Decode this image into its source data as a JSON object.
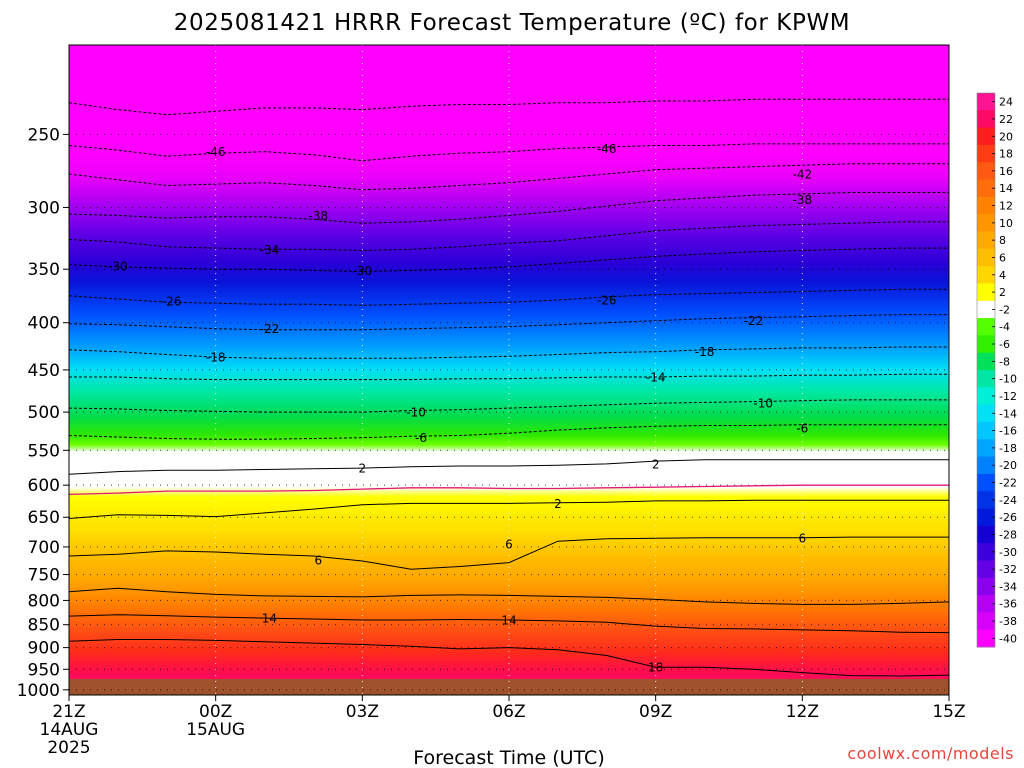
{
  "chart_data": {
    "type": "heatmap",
    "title": "2025081421 HRRR Forecast Temperature (ºC) for KPWM",
    "xlabel": "Forecast Time (UTC)",
    "ylabel": "",
    "x_ticks": [
      {
        "hour": 0,
        "lines": [
          "21Z",
          "14AUG",
          "2025"
        ]
      },
      {
        "hour": 3,
        "lines": [
          "00Z",
          "15AUG"
        ]
      },
      {
        "hour": 6,
        "lines": [
          "03Z"
        ]
      },
      {
        "hour": 9,
        "lines": [
          "06Z"
        ]
      },
      {
        "hour": 12,
        "lines": [
          "09Z"
        ]
      },
      {
        "hour": 15,
        "lines": [
          "12Z"
        ]
      },
      {
        "hour": 18,
        "lines": [
          "15Z"
        ]
      }
    ],
    "xlim": [
      0,
      18
    ],
    "y_ticks": [
      250,
      300,
      350,
      400,
      450,
      500,
      550,
      600,
      650,
      700,
      750,
      800,
      850,
      900,
      950,
      1000
    ],
    "y_unit": "hPa",
    "y_scale": "log (pressure)",
    "ylim": [
      1013,
      200
    ],
    "colorbar": {
      "labels": [
        "24",
        "22",
        "20",
        "18",
        "16",
        "14",
        "12",
        "10",
        "8",
        "6",
        "4",
        "2",
        "-2",
        "-4",
        "-6",
        "-8",
        "-10",
        "-12",
        "-14",
        "-16",
        "-18",
        "-20",
        "-22",
        "-24",
        "-26",
        "-28",
        "-30",
        "-32",
        "-34",
        "-36",
        "-38",
        "-40"
      ],
      "colors": [
        "#ff1493",
        "#ff0a64",
        "#ff1e1e",
        "#ff3c14",
        "#ff5a14",
        "#ff6e0a",
        "#ff8200",
        "#ff9600",
        "#ffaa00",
        "#ffbe00",
        "#ffd700",
        "#ffff00",
        "#ffffff",
        "#54ff00",
        "#30f000",
        "#00e15a",
        "#00e6a5",
        "#00f0d7",
        "#00e1f5",
        "#00c8ff",
        "#00a5ff",
        "#0082ff",
        "#0050ff",
        "#0032e6",
        "#0019dc",
        "#1400d2",
        "#3c00dc",
        "#6400e6",
        "#8c00f0",
        "#b400f5",
        "#d700fa",
        "#ff00ff"
      ]
    },
    "contours": [
      {
        "value": -46,
        "p": [
          231,
          235,
          238,
          236,
          234,
          234,
          235,
          233,
          232,
          232,
          231,
          231,
          230,
          230,
          229,
          229,
          229,
          229,
          229
        ]
      },
      {
        "value": -46,
        "p": [
          257,
          260,
          264,
          262,
          261,
          263,
          267,
          264,
          262,
          261,
          259,
          258,
          257,
          257,
          256,
          256,
          256,
          256,
          256
        ]
      },
      {
        "value": -42,
        "p": [
          276,
          280,
          284,
          283,
          282,
          284,
          287,
          286,
          284,
          282,
          279,
          276,
          273,
          272,
          271,
          270,
          269,
          269,
          269
        ]
      },
      {
        "value": -38,
        "p": [
          305,
          306,
          308,
          307,
          307,
          309,
          312,
          311,
          309,
          306,
          303,
          299,
          295,
          293,
          291,
          290,
          289,
          289,
          289
        ]
      },
      {
        "value": -34,
        "p": [
          325,
          327,
          331,
          332,
          333,
          333,
          334,
          333,
          331,
          328,
          326,
          322,
          318,
          316,
          314,
          313,
          312,
          311,
          311
        ]
      },
      {
        "value": -30,
        "p": [
          346,
          348,
          349,
          350,
          350,
          351,
          352,
          351,
          350,
          348,
          345,
          342,
          339,
          337,
          335,
          334,
          333,
          332,
          332
        ]
      },
      {
        "value": -26,
        "p": [
          374,
          377,
          380,
          381,
          382,
          382,
          383,
          382,
          381,
          380,
          378,
          375,
          373,
          372,
          371,
          370,
          369,
          368,
          368
        ]
      },
      {
        "value": -22,
        "p": [
          401,
          402,
          404,
          406,
          407,
          407,
          407,
          406,
          405,
          404,
          402,
          400,
          398,
          396,
          395,
          394,
          393,
          392,
          392
        ]
      },
      {
        "value": -18,
        "p": [
          428,
          430,
          433,
          436,
          437,
          437,
          437,
          437,
          436,
          435,
          433,
          431,
          430,
          428,
          427,
          426,
          426,
          425,
          425
        ]
      },
      {
        "value": -14,
        "p": [
          458,
          458,
          460,
          461,
          461,
          461,
          461,
          461,
          460,
          460,
          459,
          458,
          458,
          457,
          457,
          456,
          456,
          455,
          455
        ]
      },
      {
        "value": -10,
        "p": [
          495,
          496,
          498,
          499,
          500,
          500,
          500,
          498,
          497,
          495,
          493,
          491,
          489,
          488,
          487,
          486,
          485,
          485,
          485
        ]
      },
      {
        "value": -6,
        "p": [
          530,
          532,
          534,
          535,
          535,
          534,
          533,
          531,
          530,
          527,
          523,
          520,
          518,
          517,
          517,
          516,
          516,
          516,
          516
        ]
      },
      {
        "value": 2,
        "p": [
          584,
          580,
          578,
          578,
          577,
          576,
          575,
          573,
          572,
          572,
          571,
          569,
          565,
          563,
          563,
          563,
          563,
          563,
          563
        ]
      },
      {
        "value": 2,
        "p": [
          614,
          612,
          609,
          609,
          609,
          608,
          606,
          604,
          604,
          605,
          605,
          604,
          603,
          602,
          601,
          600,
          600,
          600,
          600
        ]
      },
      {
        "value": 2,
        "p": [
          652,
          646,
          647,
          649,
          643,
          637,
          630,
          628,
          628,
          628,
          627,
          626,
          624,
          624,
          623,
          623,
          623,
          623,
          623
        ]
      },
      {
        "value": 6,
        "p": [
          716,
          713,
          707,
          709,
          713,
          716,
          725,
          740,
          735,
          728,
          690,
          686,
          685,
          684,
          684,
          684,
          683,
          683,
          683
        ]
      },
      {
        "value": 14,
        "p": [
          783,
          776,
          783,
          788,
          791,
          792,
          793,
          790,
          789,
          790,
          792,
          794,
          798,
          803,
          806,
          808,
          808,
          806,
          803
        ]
      },
      {
        "value": 14,
        "p": [
          832,
          829,
          831,
          834,
          836,
          838,
          840,
          840,
          839,
          840,
          842,
          845,
          853,
          858,
          859,
          861,
          863,
          866,
          867
        ]
      },
      {
        "value": 18,
        "p": [
          886,
          882,
          882,
          884,
          887,
          890,
          893,
          897,
          903,
          900,
          905,
          918,
          945,
          945,
          950,
          958,
          965,
          966,
          964
        ]
      }
    ],
    "contour_labels": [
      {
        "text": "-46",
        "hour": 3.0,
        "p": 261
      },
      {
        "text": "-46",
        "hour": 11.0,
        "p": 259
      },
      {
        "text": "-42",
        "hour": 15.0,
        "p": 276
      },
      {
        "text": "-38",
        "hour": 5.1,
        "p": 306
      },
      {
        "text": "-38",
        "hour": 15.0,
        "p": 294
      },
      {
        "text": "-34",
        "hour": 4.1,
        "p": 333
      },
      {
        "text": "-30",
        "hour": 1.0,
        "p": 347
      },
      {
        "text": "-30",
        "hour": 6.0,
        "p": 351
      },
      {
        "text": "-26",
        "hour": 2.1,
        "p": 379
      },
      {
        "text": "-26",
        "hour": 11.0,
        "p": 378
      },
      {
        "text": "-22",
        "hour": 4.1,
        "p": 406
      },
      {
        "text": "-22",
        "hour": 14.0,
        "p": 398
      },
      {
        "text": "-18",
        "hour": 3.0,
        "p": 436
      },
      {
        "text": "-18",
        "hour": 13.0,
        "p": 430
      },
      {
        "text": "-14",
        "hour": 12.0,
        "p": 458
      },
      {
        "text": "-10",
        "hour": 7.1,
        "p": 500
      },
      {
        "text": "-10",
        "hour": 14.2,
        "p": 489
      },
      {
        "text": "-6",
        "hour": 7.2,
        "p": 533
      },
      {
        "text": "-6",
        "hour": 15.0,
        "p": 520
      },
      {
        "text": "2",
        "hour": 6.0,
        "p": 575
      },
      {
        "text": "2",
        "hour": 12.0,
        "p": 569
      },
      {
        "text": "2",
        "hour": 10.0,
        "p": 628
      },
      {
        "text": "6",
        "hour": 9.0,
        "p": 695
      },
      {
        "text": "6",
        "hour": 15.0,
        "p": 685
      },
      {
        "text": "6",
        "hour": 5.1,
        "p": 723
      },
      {
        "text": "14",
        "hour": 4.1,
        "p": 836
      },
      {
        "text": "14",
        "hour": 9.0,
        "p": 840
      },
      {
        "text": "18",
        "hour": 12.0,
        "p": 945
      }
    ]
  },
  "credit": "coolwx.com/models"
}
